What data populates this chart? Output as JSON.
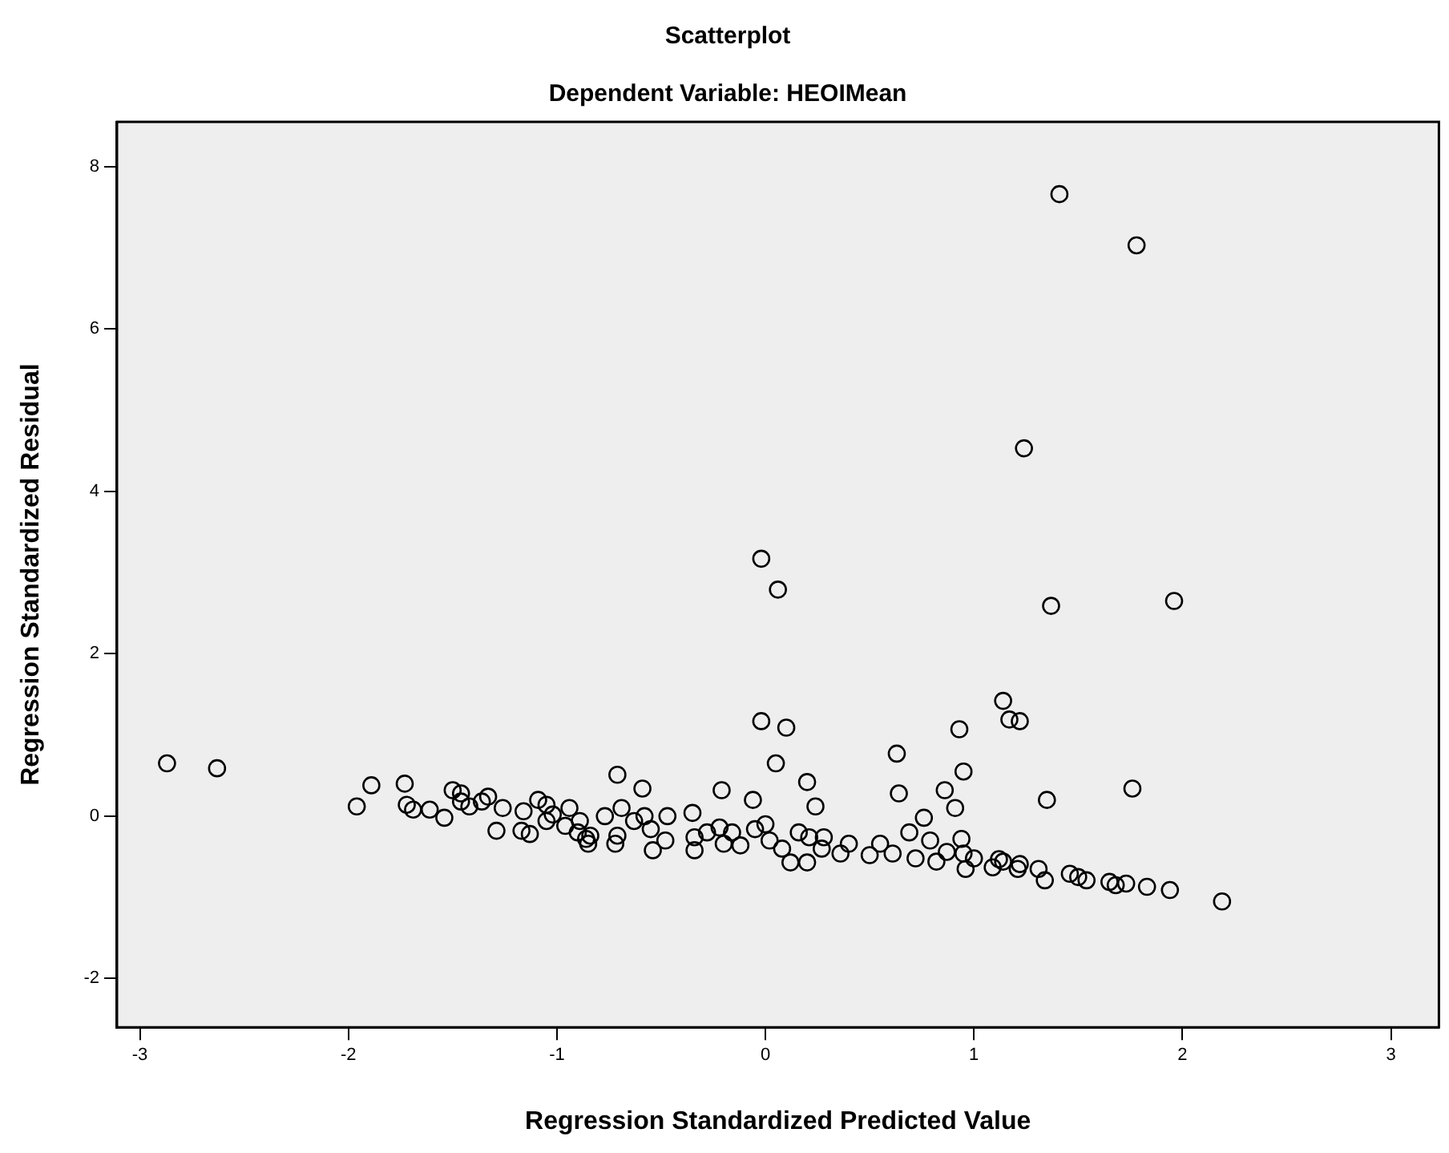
{
  "chart_data": {
    "type": "scatter",
    "title": "Scatterplot",
    "subtitle": "Dependent Variable: HEOIMean",
    "xlabel": "Regression Standardized Predicted Value",
    "ylabel": "Regression Standardized Residual",
    "xlim": [
      -3.11,
      3.23
    ],
    "ylim": [
      -2.6,
      8.55
    ],
    "xticks": [
      -3,
      -2,
      -1,
      0,
      1,
      2,
      3
    ],
    "yticks": [
      -2,
      0,
      2,
      4,
      6,
      8
    ],
    "grid": false,
    "legend": false,
    "marker": "circle",
    "series": [
      {
        "color": "#000000",
        "x": [
          -2.87,
          -2.63,
          -1.96,
          -1.89,
          -1.73,
          -1.72,
          -1.69,
          -1.61,
          -1.54,
          -1.5,
          -1.46,
          -1.46,
          -1.42,
          -1.36,
          -1.33,
          -1.26,
          -1.29,
          -1.17,
          -1.13,
          -1.16,
          -1.09,
          -1.05,
          -1.05,
          -1.02,
          -0.94,
          -0.96,
          -0.9,
          -0.86,
          -0.02,
          0.06,
          -0.02,
          0.1,
          0.05,
          0.2,
          0.24,
          -0.71,
          -0.59,
          -0.21,
          -0.06,
          0.63,
          0.64,
          0.93,
          0.95,
          0.86,
          0.91,
          0.76,
          0.69,
          1.14,
          1.17,
          1.22,
          -0.89,
          -0.84,
          -0.85,
          -0.77,
          -0.71,
          -0.72,
          -0.69,
          -0.63,
          -0.58,
          -0.55,
          -0.54,
          -0.48,
          -0.47,
          -0.35,
          -0.34,
          -0.34,
          -0.28,
          -0.22,
          -0.2,
          -0.16,
          -0.12,
          -0.05,
          0,
          0.02,
          0.08,
          0.12,
          0.16,
          0.2,
          0.21,
          0.28,
          0.27,
          0.36,
          0.4,
          0.5,
          0.55,
          0.61,
          0.72,
          0.79,
          0.82,
          0.87,
          0.94,
          0.95,
          0.96,
          1,
          1.09,
          1.14,
          1.21,
          1.41,
          1.78,
          1.24,
          1.37,
          1.96,
          1.76,
          1.35,
          1.12,
          1.22,
          1.31,
          1.34,
          1.46,
          1.5,
          1.54,
          1.65,
          1.68,
          1.73,
          1.83,
          1.94,
          2.19
        ],
        "values": [
          0.65,
          0.59,
          0.12,
          0.38,
          0.4,
          0.14,
          0.08,
          0.08,
          -0.02,
          0.32,
          0.28,
          0.18,
          0.12,
          0.18,
          0.24,
          0.1,
          -0.18,
          -0.18,
          -0.22,
          0.06,
          0.2,
          0.14,
          -0.06,
          0.02,
          0.1,
          -0.12,
          -0.2,
          -0.28,
          3.17,
          2.79,
          1.17,
          1.09,
          0.65,
          0.42,
          0.12,
          0.51,
          0.34,
          0.32,
          0.2,
          0.77,
          0.28,
          1.07,
          0.55,
          0.32,
          0.1,
          -0.02,
          -0.2,
          1.42,
          1.19,
          1.17,
          -0.06,
          -0.24,
          -0.34,
          0,
          -0.24,
          -0.34,
          0.1,
          -0.06,
          0,
          -0.16,
          -0.42,
          -0.3,
          0,
          0.04,
          -0.26,
          -0.42,
          -0.2,
          -0.14,
          -0.34,
          -0.2,
          -0.36,
          -0.16,
          -0.1,
          -0.3,
          -0.4,
          -0.57,
          -0.2,
          -0.57,
          -0.26,
          -0.26,
          -0.4,
          -0.46,
          -0.34,
          -0.48,
          -0.34,
          -0.46,
          -0.52,
          -0.3,
          -0.56,
          -0.44,
          -0.28,
          -0.46,
          -0.65,
          -0.52,
          -0.63,
          -0.56,
          -0.65,
          7.66,
          7.03,
          4.53,
          2.59,
          2.65,
          0.34,
          0.2,
          -0.53,
          -0.59,
          -0.65,
          -0.79,
          -0.71,
          -0.75,
          -0.79,
          -0.81,
          -0.85,
          -0.83,
          -0.87,
          -0.91,
          -1.05
        ]
      }
    ]
  }
}
